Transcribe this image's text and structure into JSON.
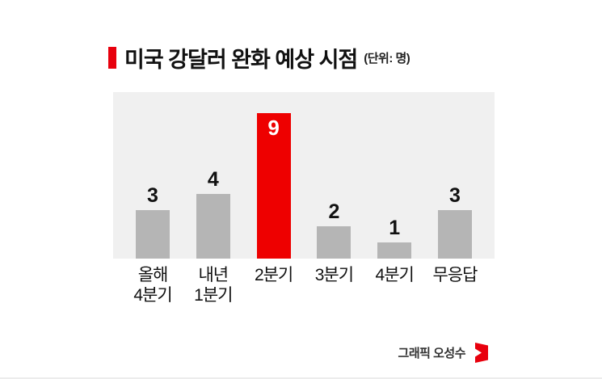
{
  "header": {
    "title": "미국 강달러 완화 예상 시점",
    "unit": "(단위: 명)"
  },
  "chart_data": {
    "type": "bar",
    "title": "미국 강달러 완화 예상 시점",
    "unit_label": "(단위: 명)",
    "categories": [
      "올해\n4분기",
      "내년\n1분기",
      "2분기",
      "3분기",
      "4분기",
      "무응답"
    ],
    "values": [
      3,
      4,
      9,
      2,
      1,
      3
    ],
    "highlight_index": 2,
    "bar_color": "#b5b5b5",
    "highlight_color": "#ee0000",
    "panel_background": "#f0f0f0",
    "ylim": [
      0,
      9
    ],
    "grid": false,
    "legend": "none"
  },
  "footer": {
    "credit": "그래픽 오성수"
  },
  "colors": {
    "accent_red": "#e8000d",
    "text_dark": "#111111"
  }
}
